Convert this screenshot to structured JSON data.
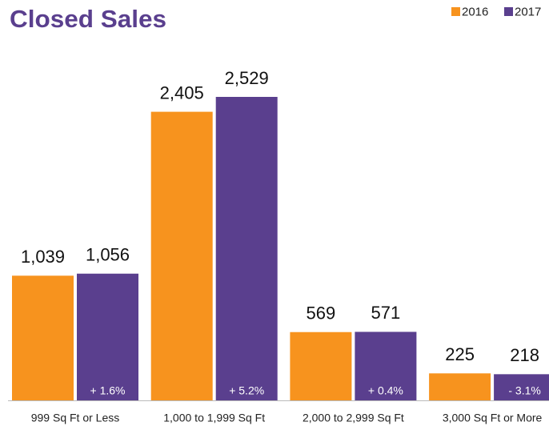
{
  "chart_data": {
    "type": "bar",
    "title": "Closed Sales",
    "categories": [
      "999 Sq Ft or Less",
      "1,000 to 1,999 Sq Ft",
      "2,000 to 2,999 Sq Ft",
      "3,000 Sq Ft or More"
    ],
    "series": [
      {
        "name": "2016",
        "color": "#f7931e",
        "values": [
          1039,
          2405,
          569,
          225
        ],
        "value_labels": [
          "1,039",
          "2,405",
          "569",
          "225"
        ]
      },
      {
        "name": "2017",
        "color": "#5a3f8e",
        "values": [
          1056,
          2529,
          571,
          218
        ],
        "value_labels": [
          "1,056",
          "2,529",
          "571",
          "218"
        ],
        "annotations": [
          "+ 1.6%",
          "+ 5.2%",
          "+ 0.4%",
          "- 3.1%"
        ]
      }
    ],
    "legend": "top-right"
  }
}
